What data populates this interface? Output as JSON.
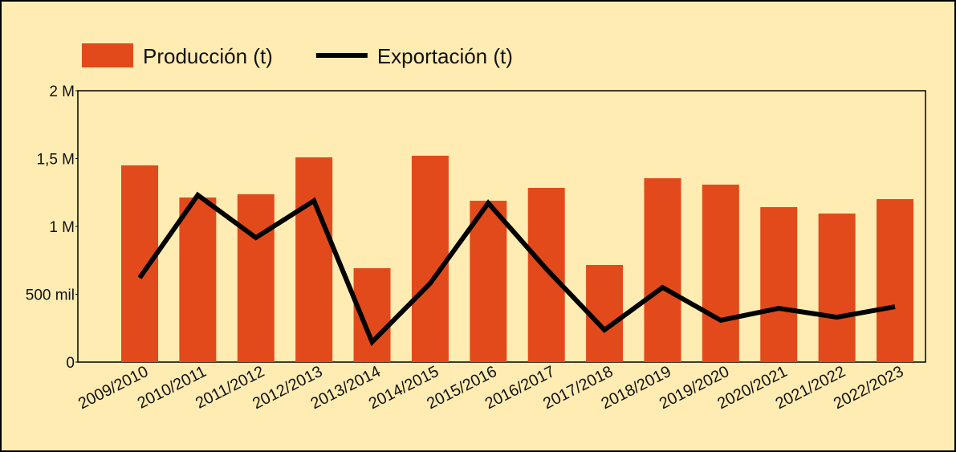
{
  "chart_data": {
    "type": "bar-line",
    "categories": [
      "2009/2010",
      "2010/2011",
      "2011/2012",
      "2012/2013",
      "2013/2014",
      "2014/2015",
      "2015/2016",
      "2016/2017",
      "2017/2018",
      "2018/2019",
      "2019/2020",
      "2020/2021",
      "2021/2022",
      "2022/2023"
    ],
    "series": [
      {
        "name": "Producción (t)",
        "type": "bar",
        "color": "#e34a1b",
        "values": [
          1450000,
          1213000,
          1237000,
          1509000,
          692000,
          1521000,
          1189000,
          1284000,
          716000,
          1355000,
          1308000,
          1142000,
          1095000,
          1201000
        ]
      },
      {
        "name": "Exportación (t)",
        "type": "line",
        "color": "#000000",
        "values": [
          621000,
          1231000,
          917000,
          1189000,
          148000,
          580000,
          1172000,
          686000,
          237000,
          550000,
          308000,
          396000,
          331000,
          408000
        ]
      }
    ],
    "ylim": [
      0,
      2000000
    ],
    "yticks": [
      0,
      {
        "value": 500000,
        "label": "500 mil"
      },
      {
        "value": 1000000,
        "label": "1 M"
      },
      {
        "value": 1500000,
        "label": "1,5 M"
      },
      {
        "value": 2000000,
        "label": "2 M"
      }
    ],
    "legend": "top-left"
  }
}
